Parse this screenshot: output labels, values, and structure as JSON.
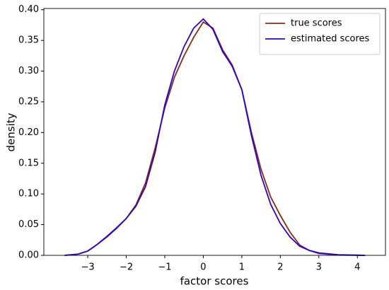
{
  "chart_data": {
    "type": "line",
    "xlabel": "factor scores",
    "ylabel": "density",
    "x": [
      -3.6,
      -3.25,
      -3,
      -2.75,
      -2.5,
      -2.25,
      -2,
      -1.75,
      -1.5,
      -1.25,
      -1,
      -0.75,
      -0.5,
      -0.25,
      0,
      0.25,
      0.5,
      0.75,
      1,
      1.25,
      1.5,
      1.75,
      2,
      2.25,
      2.5,
      2.75,
      3,
      3.5,
      4.2
    ],
    "series": [
      {
        "name": "true scores",
        "color": "#8b2a0a",
        "values": [
          0,
          0.002,
          0.007,
          0.018,
          0.03,
          0.044,
          0.06,
          0.082,
          0.118,
          0.175,
          0.24,
          0.29,
          0.325,
          0.355,
          0.38,
          0.37,
          0.335,
          0.31,
          0.27,
          0.2,
          0.14,
          0.095,
          0.065,
          0.038,
          0.017,
          0.008,
          0.003,
          0.0005,
          0
        ]
      },
      {
        "name": "estimated scores",
        "color": "#2a00e0",
        "values": [
          0,
          0.002,
          0.007,
          0.018,
          0.031,
          0.045,
          0.06,
          0.08,
          0.112,
          0.168,
          0.245,
          0.3,
          0.34,
          0.37,
          0.385,
          0.368,
          0.332,
          0.308,
          0.27,
          0.195,
          0.13,
          0.083,
          0.052,
          0.03,
          0.015,
          0.008,
          0.004,
          0.001,
          0
        ]
      }
    ],
    "xlim": [
      -4.14,
      4.73
    ],
    "xticks": [
      {
        "value": -3,
        "label": "−3"
      },
      {
        "value": -2,
        "label": "−2"
      },
      {
        "value": -1,
        "label": "−1"
      },
      0,
      1,
      2,
      3,
      4
    ],
    "ylim": [
      0,
      0.402
    ],
    "yticks": [
      {
        "value": 0,
        "label": "0.00"
      },
      {
        "value": 0.05,
        "label": "0.05"
      },
      {
        "value": 0.1,
        "label": "0.10"
      },
      {
        "value": 0.15,
        "label": "0.15"
      },
      {
        "value": 0.2,
        "label": "0.20"
      },
      {
        "value": 0.25,
        "label": "0.25"
      },
      {
        "value": 0.3,
        "label": "0.30"
      },
      {
        "value": 0.35,
        "label": "0.35"
      },
      {
        "value": 0.4,
        "label": "0.40"
      }
    ],
    "legend": "upper right"
  }
}
